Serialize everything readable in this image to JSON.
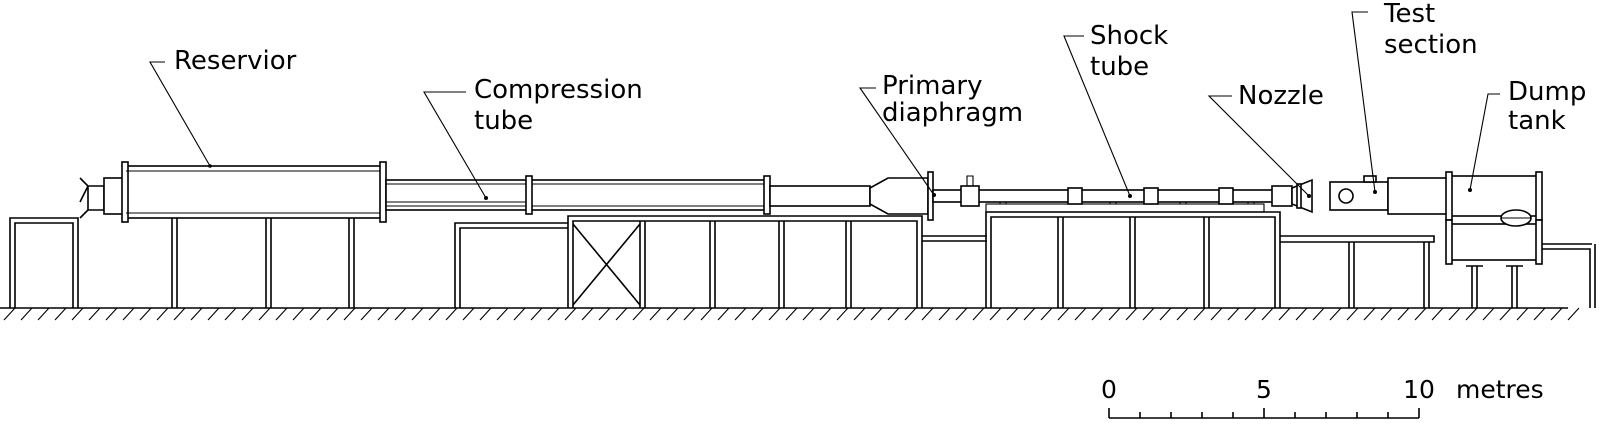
{
  "labels": {
    "reservoir": [
      "Reservior"
    ],
    "compression_tube": [
      "Compression",
      "tube"
    ],
    "primary_diaphragm": [
      "Primary",
      "diaphragm"
    ],
    "shock_tube": [
      "Shock",
      "tube"
    ],
    "nozzle": [
      "Nozzle"
    ],
    "test_section": [
      "Test",
      "section"
    ],
    "dump_tank": [
      "Dump",
      "tank"
    ]
  },
  "scale_bar": {
    "ticks": [
      {
        "value": 0,
        "label": "0"
      },
      {
        "value": 5,
        "label": "5"
      },
      {
        "value": 10,
        "label": "10"
      }
    ],
    "minor_step": 1,
    "max": 10,
    "unit": "metres"
  },
  "colors": {
    "line": "#000000",
    "background": "#ffffff"
  }
}
